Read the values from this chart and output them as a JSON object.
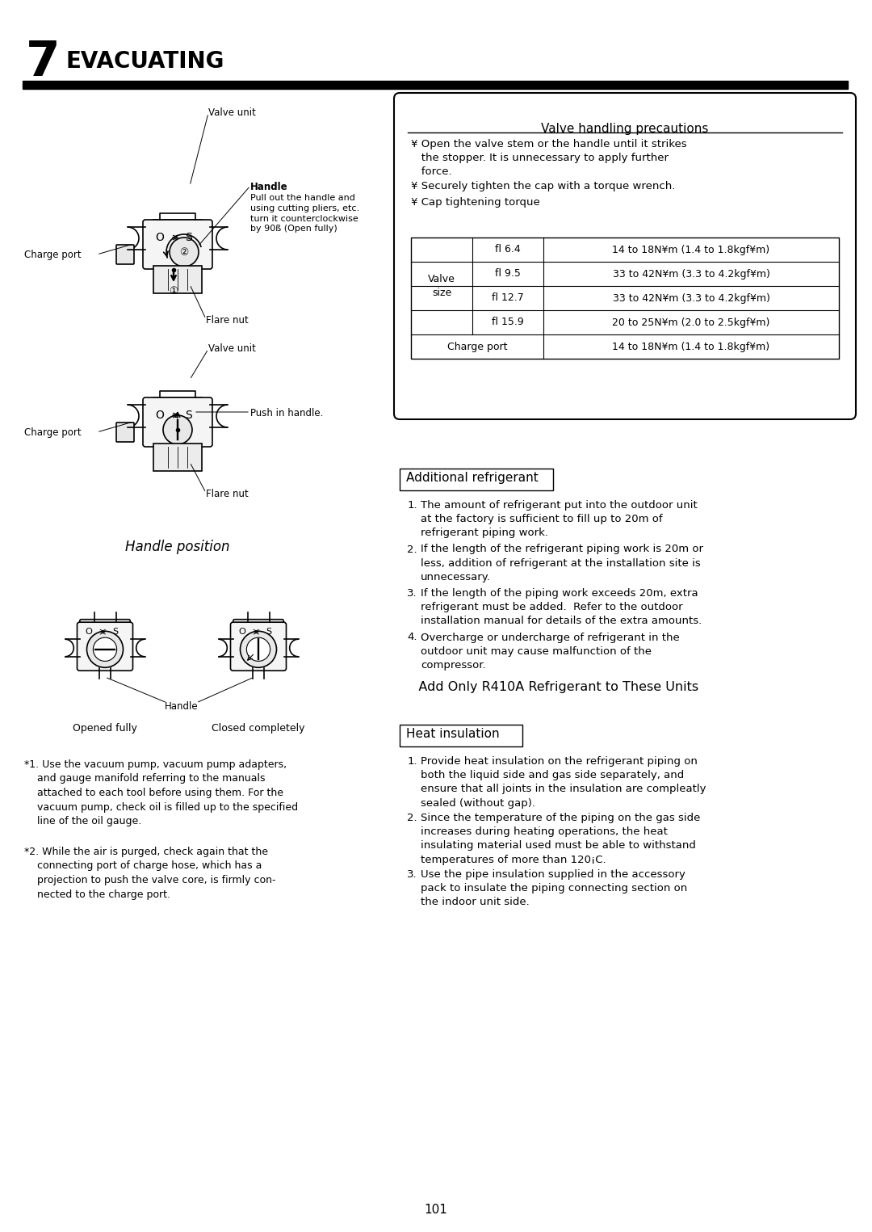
{
  "page_number": "101",
  "chapter_number": "7",
  "chapter_title": "EVACUATING",
  "bg": "#ffffff",
  "fg": "#000000",
  "valve_precautions_title": "Valve handling precautions",
  "bullet1": "¥ Open the valve stem or the handle until it strikes\n   the stopper. It is unnecessary to apply further\n   force.",
  "bullet2": "¥ Securely tighten the cap with a torque wrench.",
  "bullet3": "¥ Cap tightening torque",
  "table_rows": [
    [
      "Valve\nsize",
      "fl 6.4",
      "14 to 18N¥m (1.4 to 1.8kgf¥m)"
    ],
    [
      "",
      "fl 9.5",
      "33 to 42N¥m (3.3 to 4.2kgf¥m)"
    ],
    [
      "",
      "fl 12.7",
      "33 to 42N¥m (3.3 to 4.2kgf¥m)"
    ],
    [
      "",
      "fl 15.9",
      "20 to 25N¥m (2.0 to 2.5kgf¥m)"
    ],
    [
      "Charge port",
      "",
      "14 to 18N¥m (1.4 to 1.8kgf¥m)"
    ]
  ],
  "ar_title": "Additional refrigerant",
  "ar_items": [
    "The amount of refrigerant put into the outdoor unit\nat the factory is sufficient to fill up to 20m of\nrefrigerant piping work.",
    "If the length of the refrigerant piping work is 20m or\nless, addition of refrigerant at the installation site is\nunnecessary.",
    "If the length of the piping work exceeds 20m, extra\nrefrigerant must be added.  Refer to the outdoor\ninstallation manual for details of the extra amounts.",
    "Overcharge or undercharge of refrigerant in the\noutdoor unit may cause malfunction of the\ncompressor."
  ],
  "add_only": "   Add Only R410A Refrigerant to These Units",
  "hi_title": "Heat insulation",
  "hi_items": [
    "Provide heat insulation on the refrigerant piping on\nboth the liquid side and gas side separately, and\nensure that all joints in the insulation are compleatly\nsealed (without gap).",
    "Since the temperature of the piping on the gas side\nincreases during heating operations, the heat\ninsulating material used must be able to withstand\ntemperatures of more than 120¡C.",
    "Use the pipe insulation supplied in the accessory\npack to insulate the piping connecting section on\nthe indoor unit side."
  ],
  "fn1": "*1. Use the vacuum pump, vacuum pump adapters,\n    and gauge manifold referring to the manuals\n    attached to each tool before using them. For the\n    vacuum pump, check oil is filled up to the specified\n    line of the oil gauge.",
  "fn2": "*2. While the air is purged, check again that the\n    connecting port of charge hose, which has a\n    projection to push the valve core, is firmly con-\n    nected to the charge port."
}
